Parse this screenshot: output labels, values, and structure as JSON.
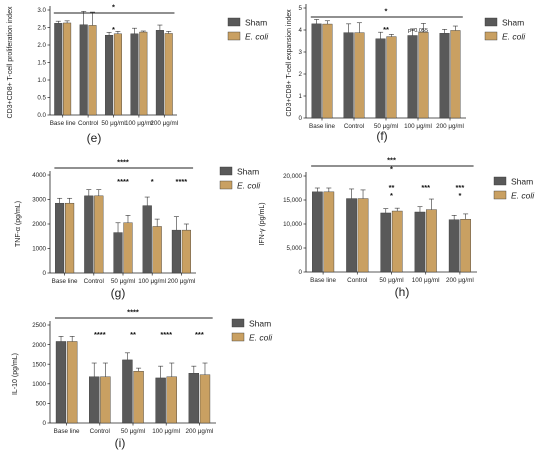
{
  "colors": {
    "sham": "#595959",
    "ecoli": "#c9a062",
    "axis": "#222222",
    "sig": "#222222"
  },
  "chart_data": [
    {
      "id": "e",
      "type": "bar",
      "panel_label": "(e)",
      "ylabel": "CD3+CD8+ T-cell proliferation index",
      "categories": [
        "Base line",
        "Control",
        "50 μg/ml",
        "100 μg/ml",
        "200 μg/ml"
      ],
      "ylim": [
        0,
        3
      ],
      "yticks": [
        "0.0",
        "0.5",
        "1.0",
        "1.5",
        "2.0",
        "2.5",
        "3.0"
      ],
      "series": [
        {
          "name": "Sham",
          "values": [
            2.62,
            2.58,
            2.28,
            2.32,
            2.42
          ],
          "errors": [
            0.06,
            0.38,
            0.08,
            0.16,
            0.15
          ]
        },
        {
          "name": "E. coli",
          "values": [
            2.63,
            2.56,
            2.32,
            2.37,
            2.33
          ],
          "errors": [
            0.06,
            0.38,
            0.07,
            0.03,
            0.06
          ]
        }
      ],
      "significance": {
        "overall": "*",
        "per_group": [
          "",
          "",
          "*",
          "",
          ""
        ]
      }
    },
    {
      "id": "f",
      "type": "bar",
      "panel_label": "(f)",
      "ylabel": "CD3+CD8+ T-cell expansion index",
      "categories": [
        "Base line",
        "Control",
        "50 μg/ml",
        "100 μg/ml",
        "200 μg/ml"
      ],
      "ylim": [
        0,
        5
      ],
      "yticks": [
        "0",
        "1",
        "2",
        "3",
        "4",
        "5"
      ],
      "series": [
        {
          "name": "Sham",
          "values": [
            4.28,
            3.88,
            3.6,
            3.75,
            3.85
          ],
          "errors": [
            0.2,
            0.4,
            0.3,
            0.3,
            0.18
          ]
        },
        {
          "name": "E. coli",
          "values": [
            4.27,
            3.88,
            3.7,
            3.9,
            3.98
          ],
          "errors": [
            0.15,
            0.45,
            0.1,
            0.4,
            0.2
          ]
        }
      ],
      "significance": {
        "overall": "*",
        "per_group": [
          "",
          "",
          "**",
          "p=0.055",
          ""
        ]
      }
    },
    {
      "id": "g",
      "type": "bar",
      "panel_label": "(g)",
      "ylabel": "TNF-α (pg/mL)",
      "categories": [
        "Base line",
        "Control",
        "50 μg/ml",
        "100 μg/ml",
        "200 μg/ml"
      ],
      "ylim": [
        0,
        4000
      ],
      "yticks": [
        "0",
        "1000",
        "2000",
        "3000",
        "4000"
      ],
      "series": [
        {
          "name": "Sham",
          "values": [
            2850,
            3150,
            1650,
            2750,
            1750
          ],
          "errors": [
            200,
            250,
            400,
            350,
            550
          ]
        },
        {
          "name": "E. coli",
          "values": [
            2850,
            3150,
            2050,
            1900,
            1750
          ],
          "errors": [
            200,
            250,
            300,
            300,
            250
          ]
        }
      ],
      "significance": {
        "overall": "****",
        "per_group": [
          "",
          "",
          "****",
          "*",
          "****"
        ]
      }
    },
    {
      "id": "h",
      "type": "bar",
      "panel_label": "(h)",
      "ylabel": "IFN-γ (pg/mL)",
      "categories": [
        "Base line",
        "Control",
        "50 μg/ml",
        "100 μg/ml",
        "200 μg/ml"
      ],
      "ylim": [
        0,
        20000
      ],
      "yticks": [
        "0",
        "5,000",
        "10,000",
        "15,000",
        "20,000"
      ],
      "series": [
        {
          "name": "Sham",
          "values": [
            16700,
            15300,
            12300,
            12500,
            10900
          ],
          "errors": [
            800,
            2000,
            900,
            1100,
            900
          ]
        },
        {
          "name": "E. coli",
          "values": [
            16700,
            15300,
            12700,
            13000,
            11000
          ],
          "errors": [
            800,
            1800,
            600,
            2200,
            1100
          ]
        }
      ],
      "significance": {
        "overall": "***",
        "overall2": "*",
        "per_group": [
          "",
          "",
          "**",
          "***",
          "***"
        ],
        "per_group2": [
          "",
          "",
          "*",
          "",
          "*"
        ]
      }
    },
    {
      "id": "i",
      "type": "bar",
      "panel_label": "(i)",
      "ylabel": "IL-10 (pg/mL)",
      "categories": [
        "Base line",
        "Control",
        "50 μg/ml",
        "100 μg/ml",
        "200 μg/ml"
      ],
      "ylim": [
        0,
        2500
      ],
      "yticks": [
        "0",
        "500",
        "1000",
        "1500",
        "2000",
        "2500"
      ],
      "series": [
        {
          "name": "Sham",
          "values": [
            2080,
            1180,
            1610,
            1150,
            1270
          ],
          "errors": [
            130,
            350,
            180,
            300,
            180
          ]
        },
        {
          "name": "E. coli",
          "values": [
            2080,
            1180,
            1320,
            1180,
            1230
          ],
          "errors": [
            130,
            350,
            80,
            350,
            300
          ]
        }
      ],
      "significance": {
        "overall": "****",
        "per_group": [
          "",
          "****",
          "**",
          "****",
          "***"
        ]
      }
    }
  ]
}
